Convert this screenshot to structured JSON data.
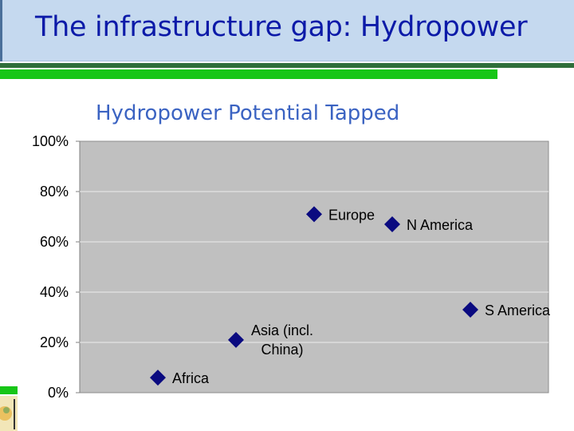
{
  "slide": {
    "title": "The infrastructure gap: Hydropower"
  },
  "colors": {
    "title_bar": "#c5d9ef",
    "title_text": "#0c1aa8",
    "accent_green": "#17c617",
    "plot_background": "#c0c0c0",
    "marker": "#0a0a80",
    "chart_title": "#3b63c2"
  },
  "chart_data": {
    "type": "scatter",
    "title": "Hydropower Potential Tapped",
    "xlabel": "",
    "ylabel": "",
    "ylim": [
      0,
      1
    ],
    "y_ticks": [
      0,
      0.2,
      0.4,
      0.6,
      0.8,
      1.0
    ],
    "y_tick_labels": [
      "0%",
      "20%",
      "40%",
      "60%",
      "80%",
      "100%"
    ],
    "grid": true,
    "legend": "none",
    "marker": "diamond",
    "points": [
      {
        "label": "Africa",
        "y": 0.06
      },
      {
        "label": "Asia (incl. China)",
        "y": 0.21
      },
      {
        "label": "Europe",
        "y": 0.71
      },
      {
        "label": "N America",
        "y": 0.67
      },
      {
        "label": "S America",
        "y": 0.33
      }
    ]
  }
}
